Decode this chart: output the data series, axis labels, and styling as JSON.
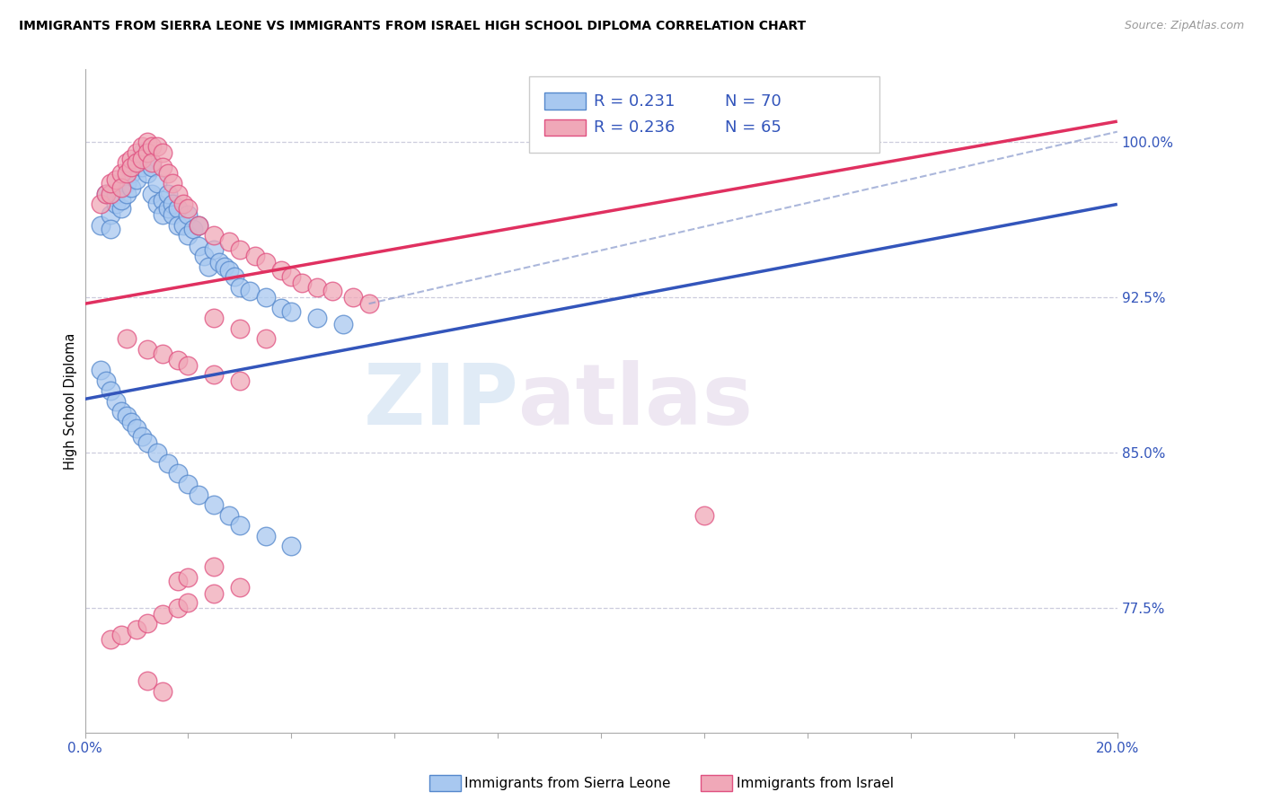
{
  "title": "IMMIGRANTS FROM SIERRA LEONE VS IMMIGRANTS FROM ISRAEL HIGH SCHOOL DIPLOMA CORRELATION CHART",
  "source": "Source: ZipAtlas.com",
  "ylabel": "High School Diploma",
  "ytick_labels": [
    "100.0%",
    "92.5%",
    "85.0%",
    "77.5%"
  ],
  "ytick_values": [
    1.0,
    0.925,
    0.85,
    0.775
  ],
  "xlim": [
    0.0,
    0.2
  ],
  "ylim": [
    0.715,
    1.035
  ],
  "label_blue": "Immigrants from Sierra Leone",
  "label_pink": "Immigrants from Israel",
  "color_blue_fill": "#a8c8f0",
  "color_pink_fill": "#f0a8b8",
  "color_blue_edge": "#5588cc",
  "color_pink_edge": "#e05080",
  "color_blue_line": "#3355bb",
  "color_pink_line": "#e03060",
  "color_blue_dash": "#8899cc",
  "watermark_zip": "ZIP",
  "watermark_atlas": "atlas",
  "legend_r_blue": "0.231",
  "legend_n_blue": "70",
  "legend_r_pink": "0.236",
  "legend_n_pink": "65",
  "blue_line_x0": 0.0,
  "blue_line_y0": 0.876,
  "blue_line_x1": 0.2,
  "blue_line_y1": 0.97,
  "pink_line_x0": 0.0,
  "pink_line_y0": 0.922,
  "pink_line_x1": 0.2,
  "pink_line_y1": 1.01,
  "dash_line_x0": 0.055,
  "dash_line_y0": 0.922,
  "dash_line_x1": 0.2,
  "dash_line_y1": 1.005,
  "sl_x": [
    0.003,
    0.004,
    0.005,
    0.005,
    0.006,
    0.006,
    0.007,
    0.007,
    0.008,
    0.008,
    0.009,
    0.009,
    0.01,
    0.01,
    0.011,
    0.011,
    0.012,
    0.012,
    0.013,
    0.013,
    0.014,
    0.014,
    0.015,
    0.015,
    0.016,
    0.016,
    0.017,
    0.017,
    0.018,
    0.018,
    0.019,
    0.02,
    0.02,
    0.021,
    0.022,
    0.022,
    0.023,
    0.024,
    0.025,
    0.026,
    0.027,
    0.028,
    0.029,
    0.03,
    0.032,
    0.035,
    0.038,
    0.04,
    0.045,
    0.05,
    0.003,
    0.004,
    0.005,
    0.006,
    0.007,
    0.008,
    0.009,
    0.01,
    0.011,
    0.012,
    0.014,
    0.016,
    0.018,
    0.02,
    0.022,
    0.025,
    0.028,
    0.03,
    0.035,
    0.04
  ],
  "sl_y": [
    0.96,
    0.975,
    0.965,
    0.958,
    0.97,
    0.975,
    0.968,
    0.972,
    0.98,
    0.975,
    0.985,
    0.978,
    0.99,
    0.982,
    0.988,
    0.995,
    0.992,
    0.985,
    0.988,
    0.975,
    0.98,
    0.97,
    0.972,
    0.965,
    0.968,
    0.975,
    0.97,
    0.965,
    0.968,
    0.96,
    0.96,
    0.955,
    0.965,
    0.958,
    0.95,
    0.96,
    0.945,
    0.94,
    0.948,
    0.942,
    0.94,
    0.938,
    0.935,
    0.93,
    0.928,
    0.925,
    0.92,
    0.918,
    0.915,
    0.912,
    0.89,
    0.885,
    0.88,
    0.875,
    0.87,
    0.868,
    0.865,
    0.862,
    0.858,
    0.855,
    0.85,
    0.845,
    0.84,
    0.835,
    0.83,
    0.825,
    0.82,
    0.815,
    0.81,
    0.805
  ],
  "is_x": [
    0.003,
    0.004,
    0.005,
    0.005,
    0.006,
    0.007,
    0.007,
    0.008,
    0.008,
    0.009,
    0.009,
    0.01,
    0.01,
    0.011,
    0.011,
    0.012,
    0.012,
    0.013,
    0.013,
    0.014,
    0.015,
    0.015,
    0.016,
    0.017,
    0.018,
    0.019,
    0.02,
    0.022,
    0.025,
    0.028,
    0.03,
    0.033,
    0.035,
    0.038,
    0.04,
    0.042,
    0.045,
    0.048,
    0.052,
    0.055,
    0.025,
    0.03,
    0.035,
    0.008,
    0.012,
    0.015,
    0.018,
    0.02,
    0.025,
    0.03,
    0.005,
    0.007,
    0.01,
    0.012,
    0.015,
    0.018,
    0.02,
    0.025,
    0.03,
    0.018,
    0.02,
    0.025,
    0.012,
    0.015,
    0.12
  ],
  "is_y": [
    0.97,
    0.975,
    0.975,
    0.98,
    0.982,
    0.985,
    0.978,
    0.99,
    0.985,
    0.992,
    0.988,
    0.995,
    0.99,
    0.998,
    0.992,
    1.0,
    0.995,
    0.998,
    0.99,
    0.998,
    0.995,
    0.988,
    0.985,
    0.98,
    0.975,
    0.97,
    0.968,
    0.96,
    0.955,
    0.952,
    0.948,
    0.945,
    0.942,
    0.938,
    0.935,
    0.932,
    0.93,
    0.928,
    0.925,
    0.922,
    0.915,
    0.91,
    0.905,
    0.905,
    0.9,
    0.898,
    0.895,
    0.892,
    0.888,
    0.885,
    0.76,
    0.762,
    0.765,
    0.768,
    0.772,
    0.775,
    0.778,
    0.782,
    0.785,
    0.788,
    0.79,
    0.795,
    0.74,
    0.735,
    0.82
  ]
}
